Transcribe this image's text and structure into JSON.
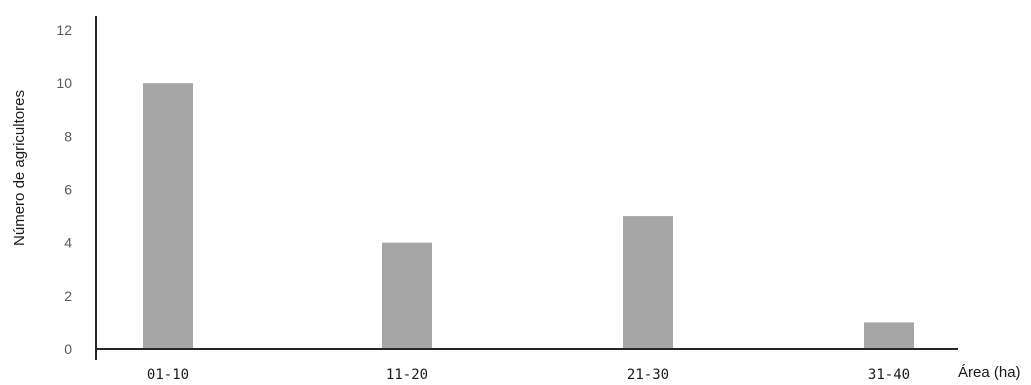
{
  "chart_data": {
    "type": "bar",
    "categories": [
      "01-10",
      "11-20",
      "21-30",
      "31-40"
    ],
    "values": [
      10,
      4,
      5,
      1
    ],
    "title": "",
    "xlabel": "Área (ha)",
    "ylabel": "Número de agricultores",
    "ylim": [
      0,
      12
    ],
    "yticks": [
      0,
      2,
      4,
      6,
      8,
      10,
      12
    ],
    "grid": false,
    "legend": "none",
    "bar_color": "#a6a6a6",
    "axis_color": "#262626"
  }
}
